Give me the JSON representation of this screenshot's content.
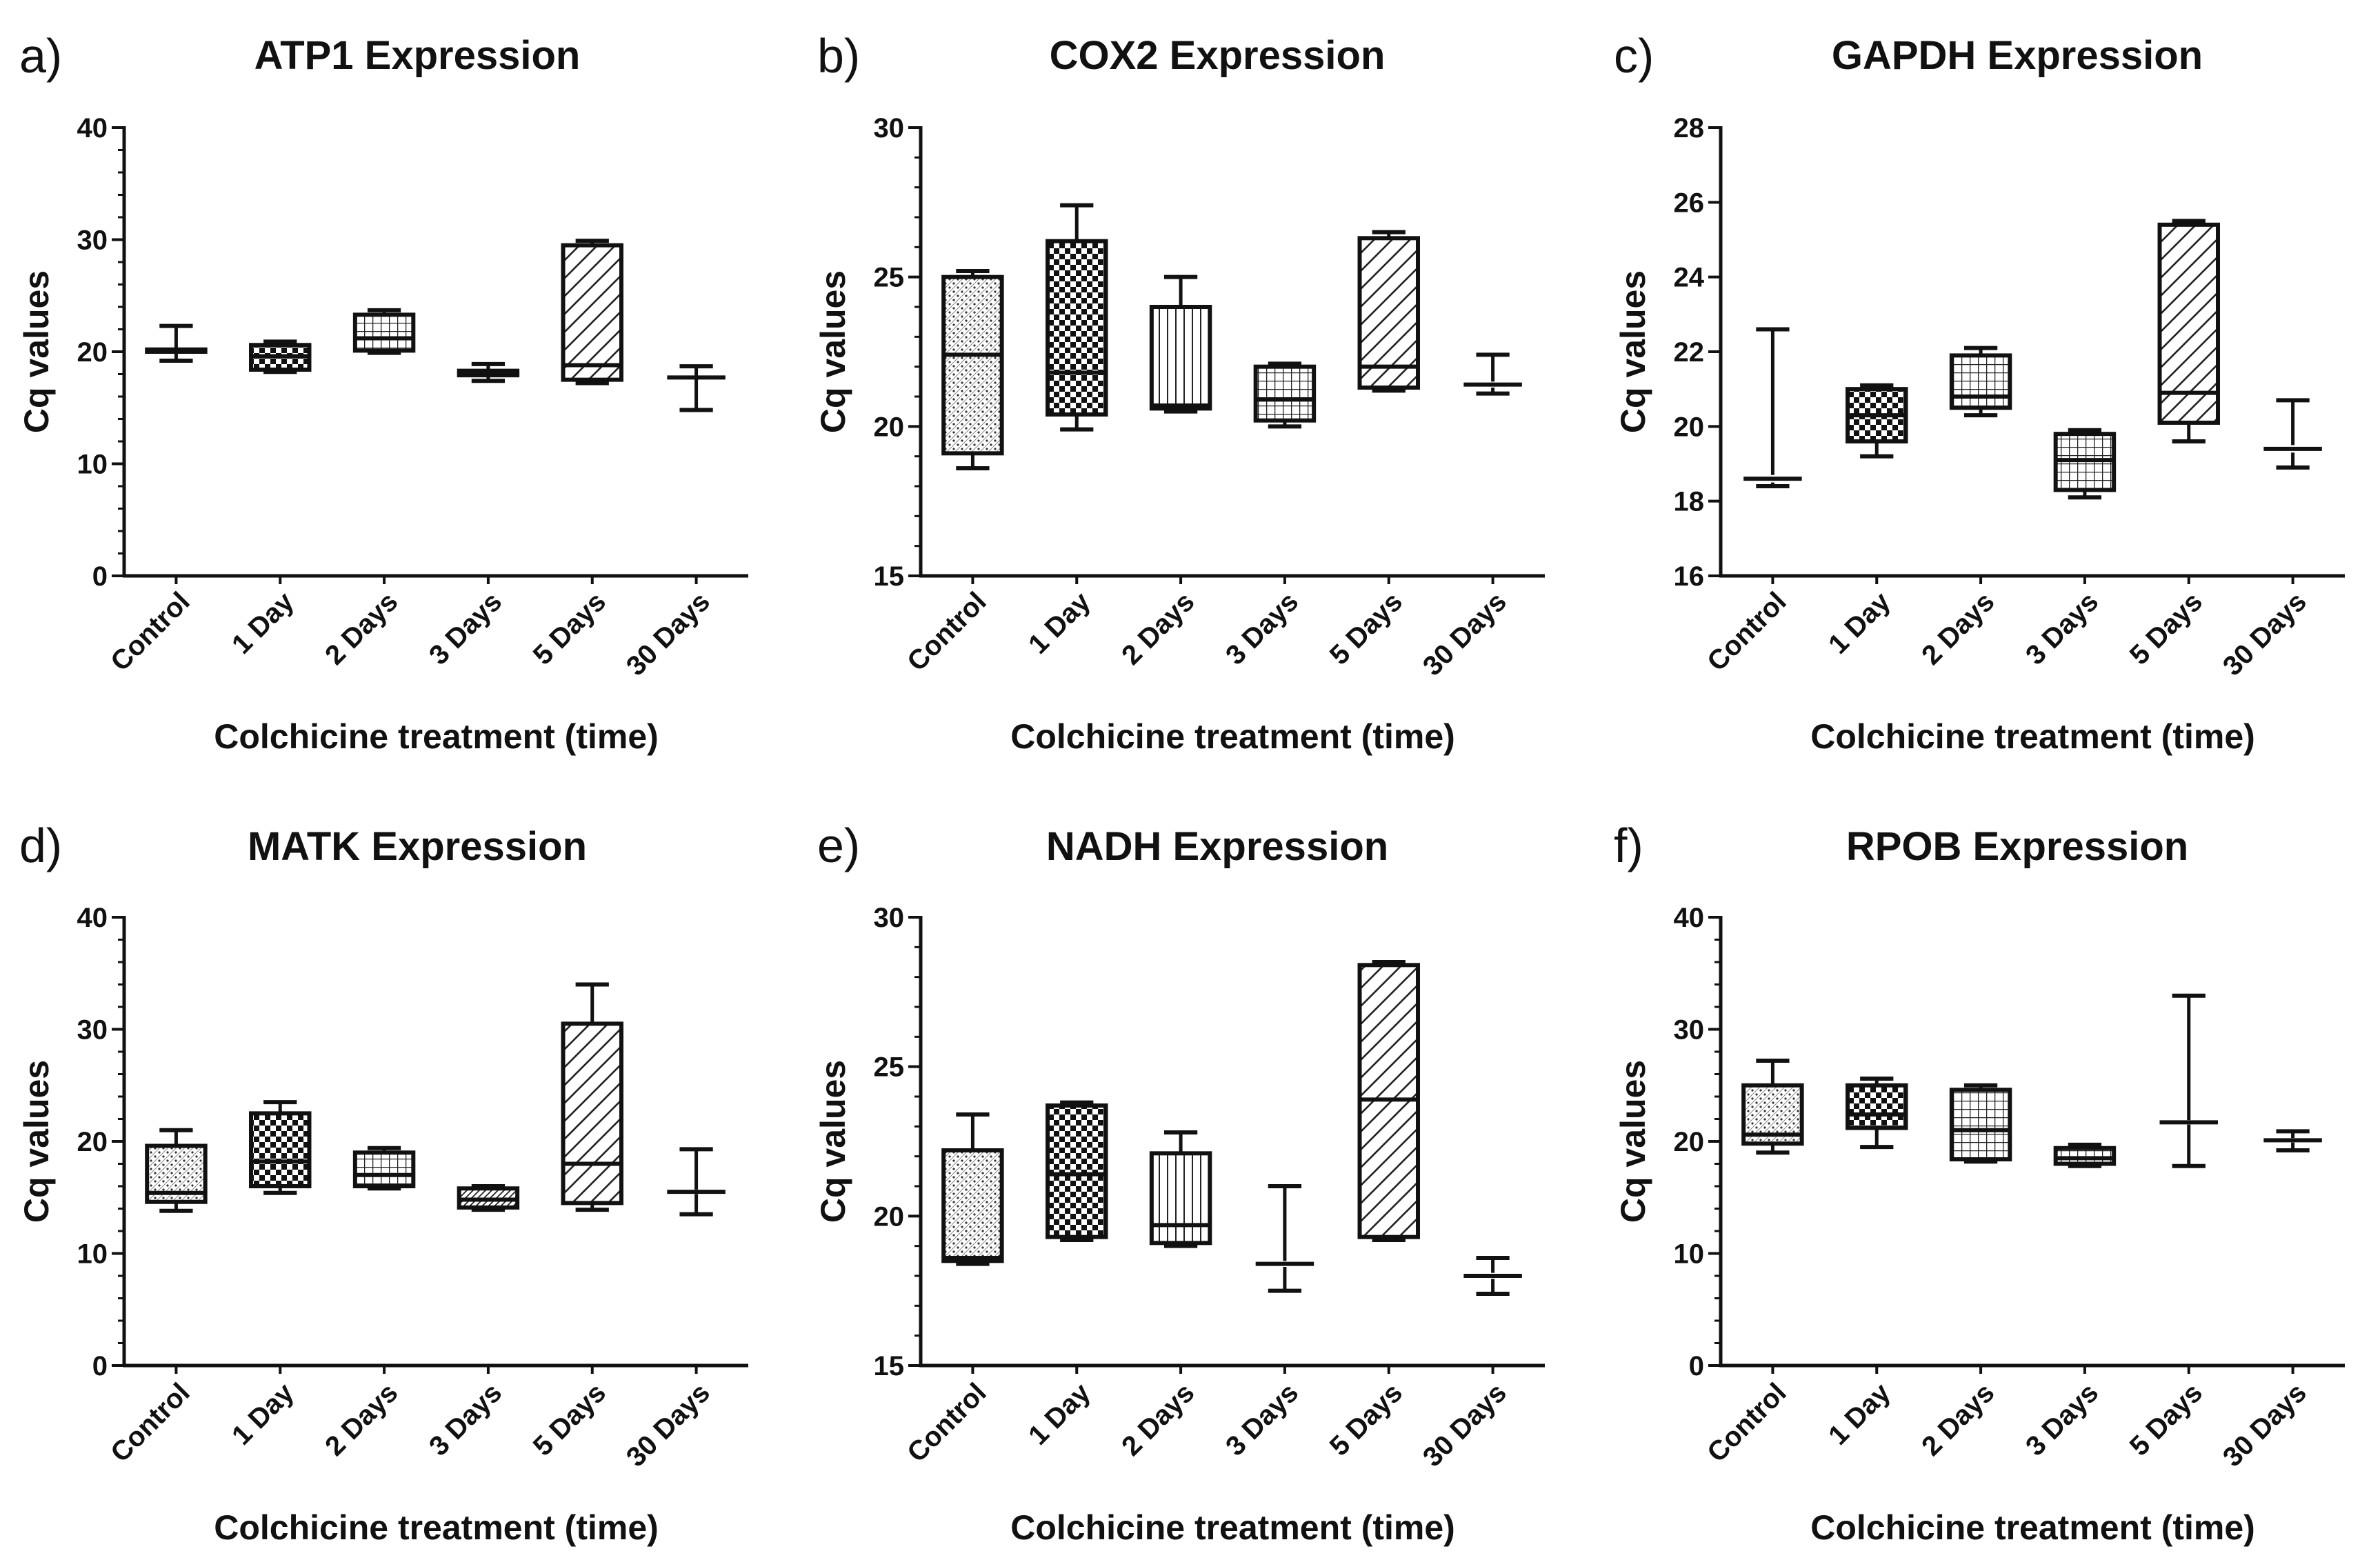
{
  "figure": {
    "colors": {
      "ink": "#111111",
      "background": "#ffffff"
    }
  },
  "chart_data": [
    {
      "panel": "a)",
      "type": "box",
      "title": "ATP1 Expression",
      "xlabel": "Colchicine treatment (time)",
      "ylabel": "Cq values",
      "ylim": [
        0,
        40
      ],
      "yticks": [
        0,
        10,
        20,
        30,
        40
      ],
      "minor_step": 2,
      "categories": [
        "Control",
        "1 Day",
        "2 Days",
        "3 Days",
        "5 Days",
        "30 Days"
      ],
      "boxes": [
        {
          "min": 19.2,
          "q1": 20,
          "median": 20.1,
          "q3": 20.2,
          "max": 22.3,
          "pattern": "stipple"
        },
        {
          "min": 18.2,
          "q1": 18.4,
          "median": 19.6,
          "q3": 20.6,
          "max": 20.9,
          "pattern": "checker"
        },
        {
          "min": 19.9,
          "q1": 20.1,
          "median": 21.2,
          "q3": 23.3,
          "max": 23.7,
          "pattern": "grid"
        },
        {
          "min": 17.4,
          "q1": 17.9,
          "median": 18.1,
          "q3": 18.3,
          "max": 18.9,
          "pattern": "dense-diag"
        },
        {
          "min": 17.2,
          "q1": 17.5,
          "median": 18.8,
          "q3": 29.5,
          "max": 29.9,
          "pattern": "diag"
        },
        {
          "min": 14.8,
          "q1": 17.6,
          "median": 17.7,
          "q3": 17.8,
          "max": 18.7,
          "pattern": "none"
        }
      ]
    },
    {
      "panel": "b)",
      "type": "box",
      "title": "COX2 Expression",
      "xlabel": "Colchicine treatment (time)",
      "ylabel": "Cq values",
      "ylim": [
        15,
        30
      ],
      "yticks": [
        15,
        20,
        25,
        30
      ],
      "minor_step": 1,
      "categories": [
        "Control",
        "1 Day",
        "2 Days",
        "3 Days",
        "5 Days",
        "30 Days"
      ],
      "boxes": [
        {
          "min": 18.6,
          "q1": 19.1,
          "median": 22.4,
          "q3": 25,
          "max": 25.2,
          "pattern": "stipple"
        },
        {
          "min": 19.9,
          "q1": 20.4,
          "median": 21.8,
          "q3": 26.2,
          "max": 27.4,
          "pattern": "checker"
        },
        {
          "min": 20.5,
          "q1": 20.6,
          "median": 20.7,
          "q3": 24,
          "max": 25,
          "pattern": "vlines"
        },
        {
          "min": 20,
          "q1": 20.2,
          "median": 20.9,
          "q3": 22,
          "max": 22.1,
          "pattern": "grid"
        },
        {
          "min": 21.2,
          "q1": 21.3,
          "median": 22,
          "q3": 26.3,
          "max": 26.5,
          "pattern": "diag"
        },
        {
          "min": 21.1,
          "q1": 21.3,
          "median": 21.4,
          "q3": 21.5,
          "max": 22.4,
          "pattern": "none"
        }
      ]
    },
    {
      "panel": "c)",
      "type": "box",
      "title": "GAPDH Expression",
      "xlabel": "Colchicine treatment (time)",
      "ylabel": "Cq values",
      "ylim": [
        16,
        28
      ],
      "yticks": [
        16,
        18,
        20,
        22,
        24,
        26,
        28
      ],
      "minor_step": 0,
      "categories": [
        "Control",
        "1 Day",
        "2 Days",
        "3 Days",
        "5 Days",
        "30 Days"
      ],
      "boxes": [
        {
          "min": 18.4,
          "q1": 18.5,
          "median": 18.6,
          "q3": 18.7,
          "max": 22.6,
          "pattern": "none"
        },
        {
          "min": 19.2,
          "q1": 19.6,
          "median": 20.3,
          "q3": 21,
          "max": 21.1,
          "pattern": "checker"
        },
        {
          "min": 20.3,
          "q1": 20.5,
          "median": 20.8,
          "q3": 21.9,
          "max": 22.1,
          "pattern": "grid"
        },
        {
          "min": 18.1,
          "q1": 18.3,
          "median": 19.1,
          "q3": 19.8,
          "max": 19.9,
          "pattern": "grid"
        },
        {
          "min": 19.6,
          "q1": 20.1,
          "median": 20.9,
          "q3": 25.4,
          "max": 25.5,
          "pattern": "diag"
        },
        {
          "min": 18.9,
          "q1": 19.3,
          "median": 19.4,
          "q3": 19.5,
          "max": 20.7,
          "pattern": "none"
        }
      ]
    },
    {
      "panel": "d)",
      "type": "box",
      "title": "MATK Expression",
      "xlabel": "Colchicine treatment (time)",
      "ylabel": "Cq values",
      "ylim": [
        0,
        40
      ],
      "yticks": [
        0,
        10,
        20,
        30,
        40
      ],
      "minor_step": 2,
      "categories": [
        "Control",
        "1 Day",
        "2 Days",
        "3 Days",
        "5 Days",
        "30 Days"
      ],
      "boxes": [
        {
          "min": 13.8,
          "q1": 14.6,
          "median": 15.4,
          "q3": 19.6,
          "max": 21,
          "pattern": "stipple"
        },
        {
          "min": 15.4,
          "q1": 16,
          "median": 18.2,
          "q3": 22.5,
          "max": 23.5,
          "pattern": "checker"
        },
        {
          "min": 15.8,
          "q1": 16,
          "median": 17,
          "q3": 19,
          "max": 19.4,
          "pattern": "grid"
        },
        {
          "min": 13.9,
          "q1": 14.1,
          "median": 14.8,
          "q3": 15.8,
          "max": 16,
          "pattern": "dense-diag"
        },
        {
          "min": 13.9,
          "q1": 14.5,
          "median": 18,
          "q3": 30.5,
          "max": 34,
          "pattern": "diag"
        },
        {
          "min": 13.5,
          "q1": 15.3,
          "median": 15.5,
          "q3": 15.7,
          "max": 19.3,
          "pattern": "none"
        }
      ]
    },
    {
      "panel": "e)",
      "type": "box",
      "title": "NADH Expression",
      "xlabel": "Colchicine treatment (time)",
      "ylabel": "Cq values",
      "ylim": [
        15,
        30
      ],
      "yticks": [
        15,
        20,
        25,
        30
      ],
      "minor_step": 1,
      "categories": [
        "Control",
        "1 Day",
        "2 Days",
        "3 Days",
        "5 Days",
        "30 Days"
      ],
      "boxes": [
        {
          "min": 18.4,
          "q1": 18.5,
          "median": 18.6,
          "q3": 22.2,
          "max": 23.4,
          "pattern": "stipple"
        },
        {
          "min": 19.2,
          "q1": 19.3,
          "median": 21.4,
          "q3": 23.7,
          "max": 23.8,
          "pattern": "checker"
        },
        {
          "min": 19,
          "q1": 19.1,
          "median": 19.7,
          "q3": 22.1,
          "max": 22.8,
          "pattern": "vlines"
        },
        {
          "min": 17.5,
          "q1": 18.3,
          "median": 18.4,
          "q3": 18.5,
          "max": 21,
          "pattern": "none"
        },
        {
          "min": 19.2,
          "q1": 19.3,
          "median": 23.9,
          "q3": 28.4,
          "max": 28.5,
          "pattern": "diag"
        },
        {
          "min": 17.4,
          "q1": 17.9,
          "median": 18,
          "q3": 18.1,
          "max": 18.6,
          "pattern": "none"
        }
      ]
    },
    {
      "panel": "f)",
      "type": "box",
      "title": "RPOB Expression",
      "xlabel": "Colchicine treatment (time)",
      "ylabel": "Cq values",
      "ylim": [
        0,
        40
      ],
      "yticks": [
        0,
        10,
        20,
        30,
        40
      ],
      "minor_step": 2,
      "categories": [
        "Control",
        "1 Day",
        "2 Days",
        "3 Days",
        "5 Days",
        "30 Days"
      ],
      "boxes": [
        {
          "min": 19,
          "q1": 19.8,
          "median": 20.6,
          "q3": 25,
          "max": 27.2,
          "pattern": "stipple"
        },
        {
          "min": 19.5,
          "q1": 21.2,
          "median": 22.4,
          "q3": 25,
          "max": 25.6,
          "pattern": "checker"
        },
        {
          "min": 18.2,
          "q1": 18.4,
          "median": 21,
          "q3": 24.6,
          "max": 25,
          "pattern": "grid"
        },
        {
          "min": 17.8,
          "q1": 18,
          "median": 18.5,
          "q3": 19.4,
          "max": 19.7,
          "pattern": "grid"
        },
        {
          "min": 17.8,
          "q1": 21.5,
          "median": 21.7,
          "q3": 21.9,
          "max": 33,
          "pattern": "none"
        },
        {
          "min": 19.2,
          "q1": 19.9,
          "median": 20.1,
          "q3": 20.3,
          "max": 20.9,
          "pattern": "none"
        }
      ]
    }
  ]
}
